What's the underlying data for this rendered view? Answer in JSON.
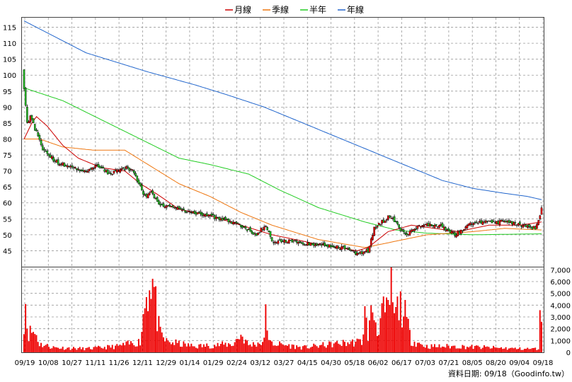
{
  "chart_data": {
    "type": "candlestick-with-volume",
    "legend": [
      {
        "name": "月線",
        "color": "#cc0000"
      },
      {
        "name": "季線",
        "color": "#ee7711"
      },
      {
        "name": "半年",
        "color": "#22cc22"
      },
      {
        "name": "年線",
        "color": "#2266cc"
      }
    ],
    "price_axis": {
      "min": 40,
      "max": 118,
      "ticks": [
        "115",
        "110",
        "105",
        "100",
        "95",
        "90",
        "85",
        "80",
        "75",
        "70",
        "65",
        "60",
        "55",
        "50",
        "45"
      ],
      "tick_values": [
        115,
        110,
        105,
        100,
        95,
        90,
        85,
        80,
        75,
        70,
        65,
        60,
        55,
        50,
        45
      ]
    },
    "volume_axis": {
      "min": 0,
      "max": 7200,
      "ticks": [
        "7,000",
        "6,000",
        "5,000",
        "4,000",
        "3,000",
        "2,000",
        "1,000",
        "0"
      ],
      "tick_values": [
        7000,
        6000,
        5000,
        4000,
        3000,
        2000,
        1000,
        0
      ]
    },
    "x_labels": [
      "09/19",
      "10/08",
      "10/27",
      "11/11",
      "11/26",
      "12/11",
      "12/29",
      "01/14",
      "01/29",
      "02/24",
      "03/12",
      "03/27",
      "04/15",
      "04/30",
      "05/18",
      "06/02",
      "06/17",
      "07/03",
      "07/21",
      "08/05",
      "08/20",
      "09/04",
      "09/18"
    ],
    "close_anchors": [
      [
        0,
        96
      ],
      [
        1,
        91
      ],
      [
        2,
        85
      ],
      [
        4,
        87
      ],
      [
        8,
        82
      ],
      [
        12,
        77
      ],
      [
        20,
        73
      ],
      [
        30,
        71
      ],
      [
        40,
        70
      ],
      [
        47,
        72
      ],
      [
        55,
        69
      ],
      [
        66,
        71
      ],
      [
        70,
        70
      ],
      [
        74,
        66
      ],
      [
        78,
        62
      ],
      [
        82,
        64
      ],
      [
        86,
        60
      ],
      [
        100,
        58
      ],
      [
        120,
        56
      ],
      [
        140,
        53
      ],
      [
        150,
        50
      ],
      [
        156,
        53
      ],
      [
        160,
        48
      ],
      [
        170,
        48
      ],
      [
        190,
        47
      ],
      [
        205,
        46
      ],
      [
        215,
        44
      ],
      [
        222,
        45
      ],
      [
        226,
        52
      ],
      [
        236,
        56
      ],
      [
        246,
        50
      ],
      [
        256,
        53
      ],
      [
        268,
        53
      ],
      [
        278,
        50
      ],
      [
        290,
        54
      ],
      [
        310,
        54
      ],
      [
        330,
        52
      ],
      [
        334,
        58
      ]
    ],
    "ma_month": [
      [
        0,
        80
      ],
      [
        5,
        85
      ],
      [
        8,
        87
      ],
      [
        15,
        84
      ],
      [
        25,
        78
      ],
      [
        35,
        74
      ],
      [
        50,
        71
      ],
      [
        65,
        70
      ],
      [
        75,
        66
      ],
      [
        85,
        63
      ],
      [
        100,
        58
      ],
      [
        120,
        56
      ],
      [
        140,
        53
      ],
      [
        160,
        50
      ],
      [
        190,
        47
      ],
      [
        215,
        45
      ],
      [
        222,
        46
      ],
      [
        235,
        51
      ],
      [
        250,
        53
      ],
      [
        265,
        52
      ],
      [
        280,
        51
      ],
      [
        300,
        53
      ],
      [
        320,
        53
      ],
      [
        334,
        54
      ]
    ],
    "ma_quarter": [
      [
        0,
        80
      ],
      [
        10,
        80
      ],
      [
        25,
        77.5
      ],
      [
        45,
        76.5
      ],
      [
        65,
        76.5
      ],
      [
        80,
        72
      ],
      [
        100,
        66
      ],
      [
        120,
        62
      ],
      [
        140,
        57
      ],
      [
        160,
        53
      ],
      [
        190,
        48.5
      ],
      [
        220,
        46
      ],
      [
        240,
        48
      ],
      [
        260,
        50
      ],
      [
        290,
        51
      ],
      [
        310,
        52
      ],
      [
        334,
        51.5
      ]
    ],
    "ma_half": [
      [
        0,
        96
      ],
      [
        25,
        92
      ],
      [
        50,
        86
      ],
      [
        75,
        80
      ],
      [
        100,
        74
      ],
      [
        120,
        72
      ],
      [
        145,
        69
      ],
      [
        165,
        64
      ],
      [
        190,
        58.5
      ],
      [
        220,
        54
      ],
      [
        240,
        51.5
      ],
      [
        260,
        50.5
      ],
      [
        290,
        50
      ],
      [
        334,
        50.3
      ]
    ],
    "ma_year": [
      [
        0,
        117
      ],
      [
        20,
        112
      ],
      [
        40,
        107
      ],
      [
        60,
        104
      ],
      [
        80,
        101
      ],
      [
        110,
        97
      ],
      [
        130,
        94
      ],
      [
        155,
        90
      ],
      [
        180,
        85
      ],
      [
        205,
        80
      ],
      [
        230,
        75
      ],
      [
        255,
        70
      ],
      [
        270,
        67
      ],
      [
        290,
        64.5
      ],
      [
        310,
        63
      ],
      [
        325,
        62
      ],
      [
        334,
        61
      ]
    ],
    "volume_anchors": [
      [
        0,
        2800
      ],
      [
        1,
        4300
      ],
      [
        2,
        2400
      ],
      [
        3,
        1600
      ],
      [
        5,
        1800
      ],
      [
        8,
        1500
      ],
      [
        10,
        700
      ],
      [
        20,
        400
      ],
      [
        40,
        300
      ],
      [
        60,
        500
      ],
      [
        75,
        900
      ],
      [
        78,
        4200
      ],
      [
        80,
        5400
      ],
      [
        82,
        6400
      ],
      [
        84,
        5300
      ],
      [
        86,
        2800
      ],
      [
        88,
        1500
      ],
      [
        92,
        900
      ],
      [
        110,
        500
      ],
      [
        135,
        700
      ],
      [
        140,
        1500
      ],
      [
        145,
        600
      ],
      [
        155,
        900
      ],
      [
        156,
        4500
      ],
      [
        158,
        800
      ],
      [
        180,
        400
      ],
      [
        200,
        700
      ],
      [
        218,
        900
      ],
      [
        220,
        3200
      ],
      [
        222,
        1500
      ],
      [
        225,
        3800
      ],
      [
        228,
        1900
      ],
      [
        231,
        3300
      ],
      [
        235,
        3300
      ],
      [
        237,
        5800
      ],
      [
        239,
        2900
      ],
      [
        242,
        4000
      ],
      [
        245,
        3600
      ],
      [
        250,
        1000
      ],
      [
        260,
        500
      ],
      [
        280,
        500
      ],
      [
        300,
        400
      ],
      [
        320,
        300
      ],
      [
        332,
        300
      ],
      [
        333,
        2600
      ],
      [
        334,
        3400
      ]
    ],
    "source_text": "資料日期: 09/18（Goodinfo.tw）"
  }
}
